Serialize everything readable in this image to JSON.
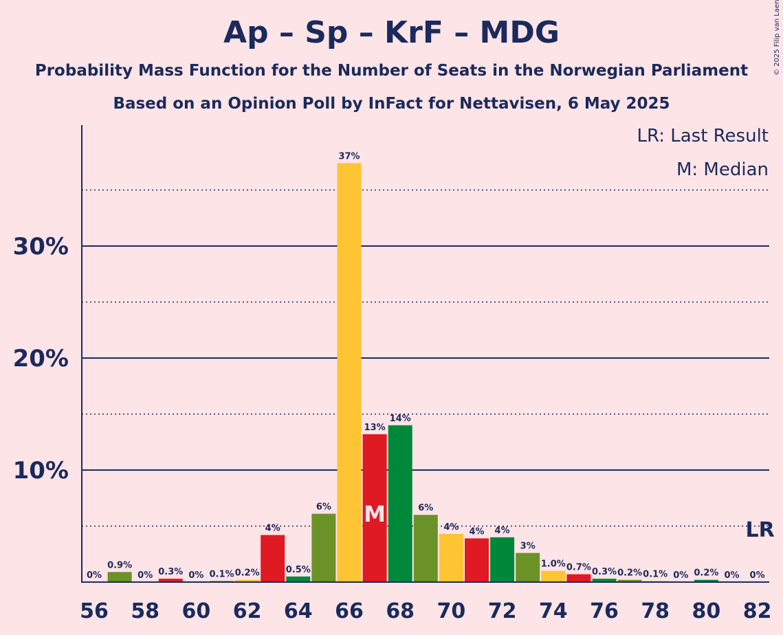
{
  "title": "Ap – Sp – KrF – MDG",
  "subtitle1": "Probability Mass Function for the Number of Seats in the Norwegian Parliament",
  "subtitle2": "Based on an Opinion Poll by InFact for Nettavisen, 6 May 2025",
  "copyright": "© 2025 Filip van Laenen",
  "legend": {
    "last_result": "LR: Last Result",
    "median": "M: Median"
  },
  "colors": {
    "background": "#fde4e6",
    "text": "#1b2a5c",
    "palette": [
      "#00883a",
      "#6b9227",
      "#fec433",
      "#df1a22"
    ]
  },
  "chart_data": {
    "type": "bar",
    "title": "Ap – Sp – KrF – MDG",
    "xlabel": "",
    "ylabel": "",
    "ylim": [
      0,
      40
    ],
    "yticks": [
      10,
      20,
      30
    ],
    "ytick_labels": [
      "10%",
      "20%",
      "30%"
    ],
    "minor_gridlines": [
      5,
      15,
      25,
      35
    ],
    "xtick_labels": [
      "56",
      "58",
      "60",
      "62",
      "64",
      "66",
      "68",
      "70",
      "72",
      "74",
      "76",
      "78",
      "80",
      "82"
    ],
    "categories": [
      56,
      57,
      58,
      59,
      60,
      61,
      62,
      63,
      64,
      65,
      66,
      67,
      68,
      69,
      70,
      71,
      72,
      73,
      74,
      75,
      76,
      77,
      78,
      79,
      80,
      81,
      82
    ],
    "values": [
      0,
      0.9,
      0,
      0.3,
      0,
      0.1,
      0.2,
      4.2,
      0.5,
      6.1,
      37.4,
      13.2,
      14.0,
      6.0,
      4.3,
      3.9,
      4.0,
      2.6,
      1.0,
      0.7,
      0.3,
      0.2,
      0.1,
      0,
      0.2,
      0,
      0
    ],
    "labels": [
      "0%",
      "0.9%",
      "0%",
      "0.3%",
      "0%",
      "0.1%",
      "0.2%",
      "4%",
      "0.5%",
      "6%",
      "37%",
      "13%",
      "14%",
      "6%",
      "4%",
      "4%",
      "4%",
      "3%",
      "1.0%",
      "0.7%",
      "0.3%",
      "0.2%",
      "0.1%",
      "0%",
      "0.2%",
      "0%",
      "0%"
    ],
    "median": 67,
    "median_label": "M",
    "last_result": 82,
    "last_result_label": "LR"
  }
}
